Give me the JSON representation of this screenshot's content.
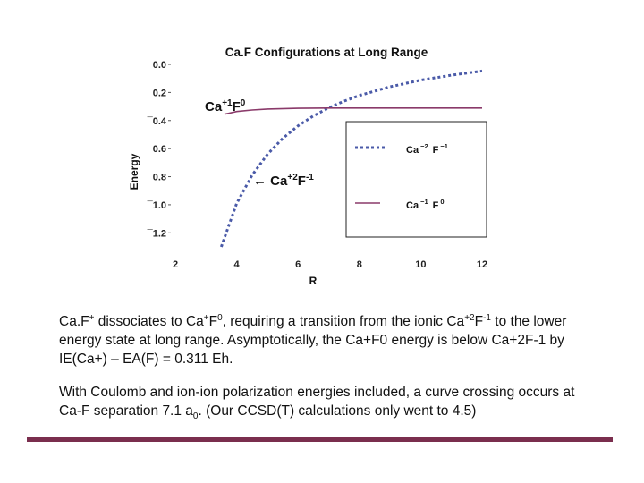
{
  "slide": {
    "para1": {
      "l1_a": "Ca.F",
      "l1_sup_plus": "+",
      "l1_b": " dissociates to Ca",
      "l1_sup_plus2": "+",
      "l1_c": "F",
      "l1_sup0": "0",
      "l1_d": ", requiring a transition from the ionic Ca",
      "l1_sup_p2": "+2",
      "l1_e": "F",
      "l1_sup_m1": "-1",
      "l1_f": " to the lower",
      "l2": "energy state at long range.  Asymptotically, the Ca+F0 energy is below Ca+2F-1 by",
      "l3": "IE(Ca+) – EA(F) = 0.311 Eh."
    },
    "para2": {
      "l1": "With Coulomb and ion-ion polarization energies included, a curve crossing occurs at",
      "l2_a": "Ca-F separation 7.1 a",
      "l2_sub": "0",
      "l2_b": ". (Our CCSD(T) calculations only went to 4.5)"
    },
    "colors": {
      "footer_rule": "#7a2e4e"
    }
  },
  "chart_data": {
    "type": "line",
    "title": "Ca.F  Configurations at Long Range",
    "xlabel": "R",
    "ylabel": "Energy",
    "xlim": [
      2,
      12
    ],
    "ylim": [
      -1.3,
      0.0
    ],
    "x_ticks": [
      2,
      4,
      6,
      8,
      10,
      12
    ],
    "x_tick_labels": [
      "2",
      "4",
      "6",
      "8",
      "10",
      "12"
    ],
    "y_ticks": [
      0.0,
      -0.2,
      -0.4,
      -0.6,
      -0.8,
      -1.0,
      -1.2
    ],
    "y_tick_labels": [
      "0.0",
      "0.2",
      "¯0.4",
      "0.6",
      "0.8",
      "¯1.0",
      "¯1.2"
    ],
    "annotations": {
      "top": {
        "main": "Ca",
        "sup1": "+1",
        "mid": "F",
        "sup2": "0"
      },
      "bottom": {
        "arrow": "← ",
        "main": "Ca",
        "sup1": "+2",
        "mid": "F",
        "sup2": "-1"
      }
    },
    "legend": {
      "position": "right",
      "entries": [
        {
          "main": "Ca",
          "sup1": "−2",
          "mid": " F",
          "sup2": "−1",
          "style": "dotted",
          "color": "#4a5aa8"
        },
        {
          "main": "Ca",
          "sup1": "−1",
          "mid": " F",
          "sup2": "0",
          "style": "solid",
          "color": "#8a3a6a"
        }
      ]
    },
    "series": [
      {
        "label_id": "ionic",
        "style": "dotted",
        "color": "#4a5aa8",
        "x": [
          3.5,
          4.0,
          4.5,
          5.0,
          5.5,
          6.0,
          6.5,
          7.0,
          7.5,
          8.0,
          9.0,
          10.0,
          11.0,
          12.0
        ],
        "y": [
          -1.3,
          -0.99,
          -0.79,
          -0.642,
          -0.527,
          -0.438,
          -0.367,
          -0.31,
          -0.262,
          -0.222,
          -0.159,
          -0.112,
          -0.077,
          -0.047
        ]
      },
      {
        "label_id": "neutral",
        "style": "solid",
        "color": "#8a3a6a",
        "x": [
          3.6,
          4.0,
          4.5,
          5.0,
          6.0,
          7.0,
          8.0,
          10.0,
          12.0
        ],
        "y": [
          -0.355,
          -0.336,
          -0.325,
          -0.318,
          -0.313,
          -0.311,
          -0.311,
          -0.311,
          -0.311
        ]
      }
    ]
  }
}
